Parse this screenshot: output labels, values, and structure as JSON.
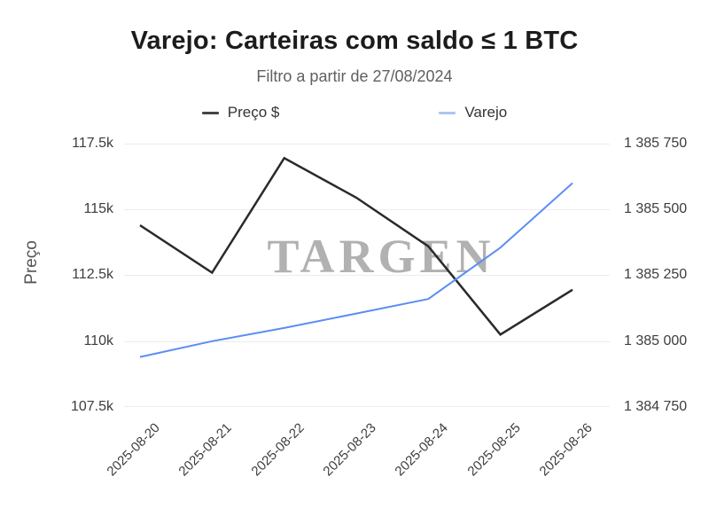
{
  "title": "Varejo: Carteiras com saldo ≤ 1 BTC",
  "subtitle": "Filtro a partir de 27/08/2024",
  "watermark": "TARGEN",
  "legend": {
    "items": [
      {
        "label": "Preço $",
        "marker_color": "#444444"
      },
      {
        "label": "Varejo",
        "marker_color": "#a9c7f4"
      }
    ]
  },
  "chart_data": {
    "type": "line",
    "title": "Varejo: Carteiras com saldo ≤ 1 BTC",
    "subtitle": "Filtro a partir de 27/08/2024",
    "x": [
      "2025-08-20",
      "2025-08-21",
      "2025-08-22",
      "2025-08-23",
      "2025-08-24",
      "2025-08-25",
      "2025-08-26"
    ],
    "series": [
      {
        "name": "Preço $",
        "yaxis": "left",
        "color": "#2a2a2a",
        "stroke_width": 2.5,
        "values": [
          114400,
          112600,
          116950,
          115450,
          113600,
          110250,
          111950
        ]
      },
      {
        "name": "Varejo",
        "yaxis": "right",
        "color": "#5b8df5",
        "stroke_width": 2,
        "values": [
          1384940,
          1385000,
          1385050,
          1385105,
          1385160,
          1385355,
          1385600
        ]
      }
    ],
    "left_axis": {
      "title": "Preço",
      "tick_labels": [
        "117.5k",
        "115k",
        "112.5k",
        "110k",
        "107.5k"
      ],
      "tick_values": [
        117500,
        115000,
        112500,
        110000,
        107500
      ],
      "range": [
        107500,
        117500
      ]
    },
    "right_axis": {
      "tick_labels": [
        "1 385 750",
        "1 385 500",
        "1 385 250",
        "1 385 000",
        "1 384 750"
      ],
      "tick_values": [
        1385750,
        1385500,
        1385250,
        1385000,
        1384750
      ],
      "range": [
        1384750,
        1385750
      ]
    },
    "grid": "horizontal-only",
    "legend_position": "top-center",
    "x_label_rotation": -45
  }
}
